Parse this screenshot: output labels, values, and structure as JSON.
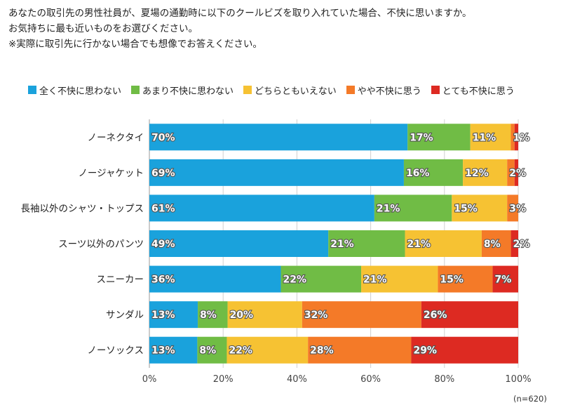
{
  "question": {
    "lines": [
      "あなたの取引先の男性社員が、夏場の通勤時に以下のクールビズを取り入れていた場合、不快に思いますか。",
      "お気持ちに最も近いものをお選びください。",
      "※実際に取引先に行かない場合でも想像でお答えください。"
    ]
  },
  "note": "(n=620)",
  "chart_data": {
    "type": "bar",
    "orientation": "horizontal",
    "stacked": true,
    "percent_stacked": true,
    "title": "",
    "xlabel": "",
    "ylabel": "",
    "xlim": [
      0,
      100
    ],
    "x_ticks": [
      "0%",
      "20%",
      "40%",
      "60%",
      "80%",
      "100%"
    ],
    "legend_position": "top",
    "categories": [
      "ノーネクタイ",
      "ノージャケット",
      "長袖以外のシャツ・トップス",
      "スーツ以外のパンツ",
      "スニーカー",
      "サンダル",
      "ノーソックス"
    ],
    "series": [
      {
        "name": "全く不快に思わない",
        "color": "#1aa2dc",
        "values": [
          70,
          69,
          61,
          49,
          36,
          13,
          13
        ]
      },
      {
        "name": "あまり不快に思わない",
        "color": "#70bc45",
        "values": [
          17,
          16,
          21,
          21,
          22,
          8,
          8
        ]
      },
      {
        "name": "どちらともいえない",
        "color": "#f6c233",
        "values": [
          11,
          12,
          15,
          21,
          21,
          20,
          22
        ]
      },
      {
        "name": "やや不快に思う",
        "color": "#f47a28",
        "values": [
          1,
          2,
          3,
          8,
          15,
          32,
          28
        ]
      },
      {
        "name": "とても不快に思う",
        "color": "#dd2a22",
        "values": [
          1,
          1,
          0,
          2,
          7,
          26,
          29
        ]
      }
    ],
    "data_labels": [
      [
        "70%",
        "17%",
        "11%",
        "1%",
        ""
      ],
      [
        "69%",
        "16%",
        "12%",
        "2%",
        ""
      ],
      [
        "61%",
        "21%",
        "15%",
        "3%",
        ""
      ],
      [
        "49%",
        "21%",
        "21%",
        "8%",
        "2%"
      ],
      [
        "36%",
        "22%",
        "21%",
        "15%",
        "7%"
      ],
      [
        "13%",
        "8%",
        "20%",
        "32%",
        "26%"
      ],
      [
        "13%",
        "8%",
        "22%",
        "28%",
        "29%"
      ]
    ]
  }
}
